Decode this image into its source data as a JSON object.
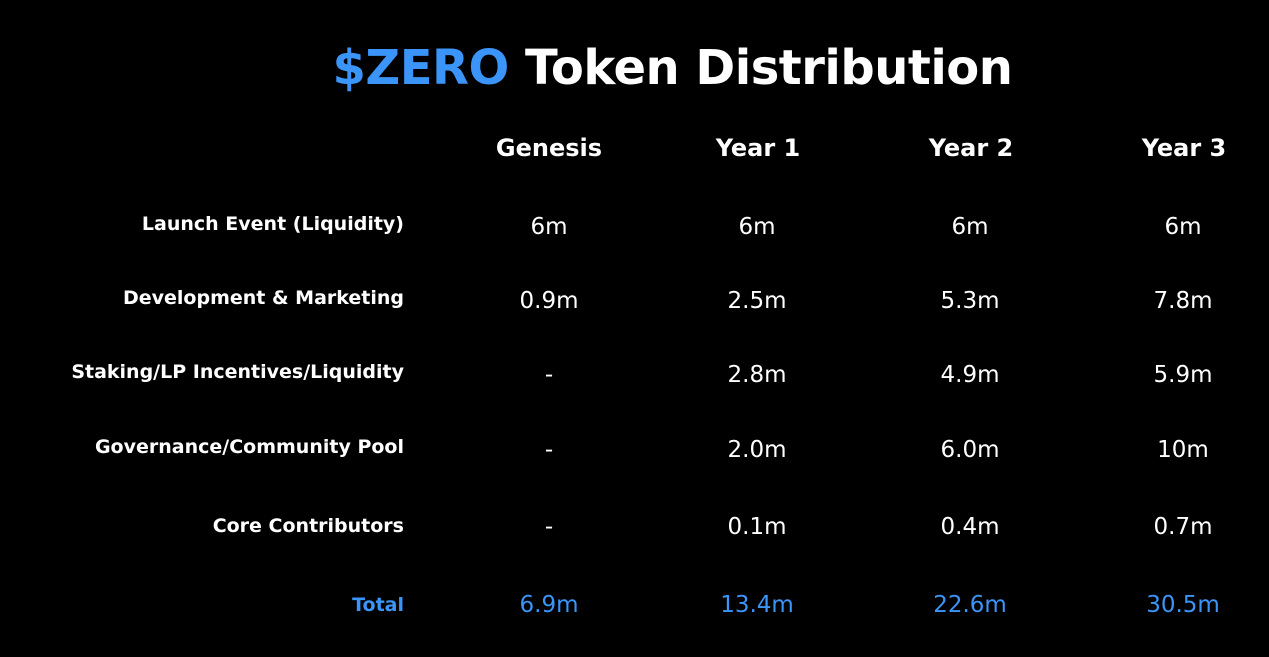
{
  "title": {
    "accent": "$ZERO",
    "rest": "Token Distribution"
  },
  "colors": {
    "background": "#000000",
    "text": "#ffffff",
    "accent": "#3b94f7"
  },
  "columns": [
    "Genesis",
    "Year 1",
    "Year 2",
    "Year 3"
  ],
  "rows": [
    {
      "label": "Launch Event (Liquidity)",
      "values": [
        "6m",
        "6m",
        "6m",
        "6m"
      ]
    },
    {
      "label": "Development & Marketing",
      "values": [
        "0.9m",
        "2.5m",
        "5.3m",
        "7.8m"
      ]
    },
    {
      "label": "Staking/LP Incentives/Liquidity",
      "values": [
        "-",
        "2.8m",
        "4.9m",
        "5.9m"
      ]
    },
    {
      "label": "Governance/Community Pool",
      "values": [
        "-",
        "2.0m",
        "6.0m",
        "10m"
      ]
    },
    {
      "label": "Core Contributors",
      "values": [
        "-",
        "0.1m",
        "0.4m",
        "0.7m"
      ]
    }
  ],
  "total": {
    "label": "Total",
    "values": [
      "6.9m",
      "13.4m",
      "22.6m",
      "30.5m"
    ]
  }
}
